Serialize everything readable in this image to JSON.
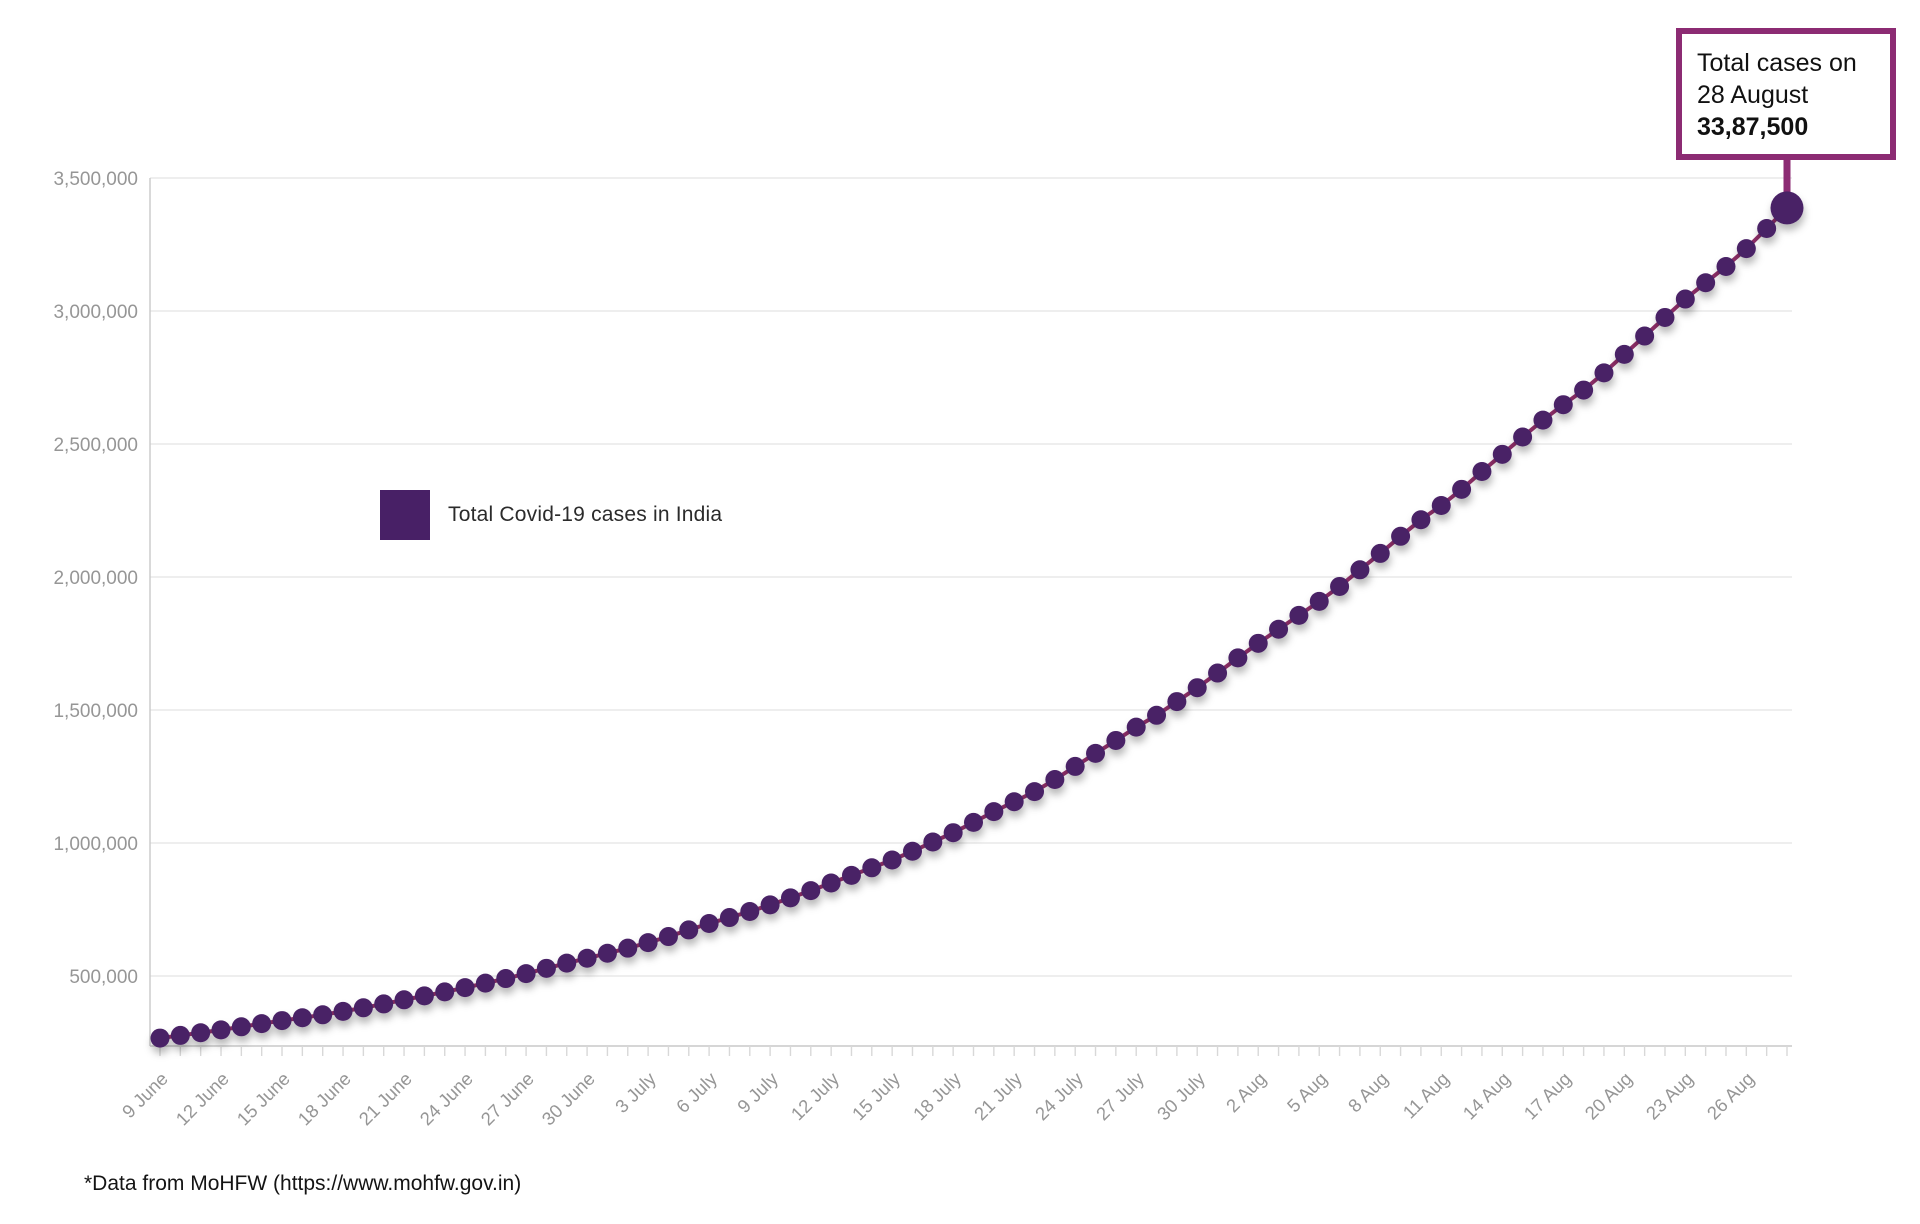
{
  "legend": {
    "label": "Total Covid-19 cases in India"
  },
  "annotation": {
    "line1": "Total cases on",
    "line2": "28 August",
    "value": "33,87,500"
  },
  "footer": {
    "text": "*Data from MoHFW (https://www.mohfw.gov.in)"
  },
  "colors": {
    "dot": "#482066",
    "line": "#8e2e68",
    "accent": "#8c2b73",
    "grid": "#e9e9e9",
    "axis": "#c9c9c9",
    "tick": "#d8d8d8",
    "axis_label": "#969696"
  },
  "chart_data": {
    "type": "line",
    "title": "",
    "xlabel": "",
    "ylabel": "",
    "series_name": "Total Covid-19 cases in India",
    "grid": "horizontal",
    "marker": "circle",
    "legend_position": "inside-left",
    "ylim": [
      240000,
      3620000
    ],
    "y_ticks": [
      500000,
      1000000,
      1500000,
      2000000,
      2500000,
      3000000,
      3500000
    ],
    "y_tick_labels": [
      "500,000",
      "1,000,000",
      "1,500,000",
      "2,000,000",
      "2,500,000",
      "3,000,000",
      "3,500,000"
    ],
    "x_label_every": 3,
    "last_labeled_x_index": 78,
    "highlight": {
      "index": 80,
      "note_lines": [
        "Total cases on",
        "28 August"
      ],
      "value_label": "33,87,500"
    },
    "x": [
      "9 June",
      "10 June",
      "11 June",
      "12 June",
      "13 June",
      "14 June",
      "15 June",
      "16 June",
      "17 June",
      "18 June",
      "19 June",
      "20 June",
      "21 June",
      "22 June",
      "23 June",
      "24 June",
      "25 June",
      "26 June",
      "27 June",
      "28 June",
      "29 June",
      "30 June",
      "1 July",
      "2 July",
      "3 July",
      "4 July",
      "5 July",
      "6 July",
      "7 July",
      "8 July",
      "9 July",
      "10 July",
      "11 July",
      "12 July",
      "13 July",
      "14 July",
      "15 July",
      "16 July",
      "17 July",
      "18 July",
      "19 July",
      "20 July",
      "21 July",
      "22 July",
      "23 July",
      "24 July",
      "25 July",
      "26 July",
      "27 July",
      "28 July",
      "29 July",
      "30 July",
      "31 July",
      "1 Aug",
      "2 Aug",
      "3 Aug",
      "4 Aug",
      "5 Aug",
      "6 Aug",
      "7 Aug",
      "8 Aug",
      "9 Aug",
      "10 Aug",
      "11 Aug",
      "12 Aug",
      "13 Aug",
      "14 Aug",
      "15 Aug",
      "16 Aug",
      "17 Aug",
      "18 Aug",
      "19 Aug",
      "20 Aug",
      "21 Aug",
      "22 Aug",
      "23 Aug",
      "24 Aug",
      "25 Aug",
      "26 Aug",
      "27 Aug",
      "28 Aug"
    ],
    "values": [
      266600,
      276600,
      286600,
      297500,
      309000,
      321000,
      332400,
      343100,
      354100,
      366900,
      380500,
      395000,
      410500,
      425300,
      440200,
      456200,
      473100,
      490400,
      509000,
      528900,
      548300,
      566800,
      585500,
      604600,
      625500,
      648300,
      673200,
      697400,
      719700,
      742400,
      767300,
      793800,
      820900,
      849600,
      878300,
      906800,
      936200,
      968900,
      1003800,
      1038700,
      1077600,
      1118000,
      1155200,
      1193100,
      1238600,
      1287900,
      1336900,
      1385500,
      1435500,
      1480100,
      1531700,
      1583800,
      1638900,
      1696000,
      1750700,
      1803700,
      1855700,
      1908300,
      1964500,
      2027100,
      2088600,
      2153000,
      2215100,
      2268700,
      2329600,
      2396600,
      2461200,
      2526200,
      2589700,
      2647700,
      2702700,
      2767300,
      2836900,
      2905800,
      2975700,
      3044900,
      3106300,
      3167300,
      3234500,
      3310200,
      3387500
    ]
  }
}
